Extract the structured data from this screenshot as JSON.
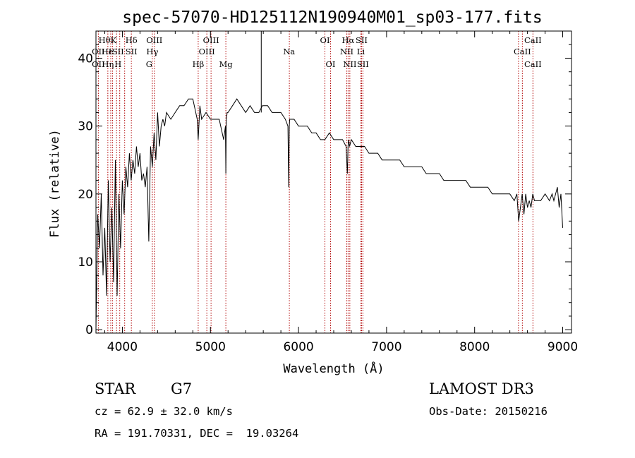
{
  "chart_data": {
    "type": "line",
    "title": "spec-57070-HD125112N190940M01_sp03-177.fits",
    "xlabel": "Wavelength (Å)",
    "ylabel": "Flux (relative)",
    "xlim": [
      3700,
      9100
    ],
    "ylim": [
      -0.5,
      44
    ],
    "x_ticks": [
      4000,
      5000,
      6000,
      7000,
      8000,
      9000
    ],
    "y_ticks": [
      0,
      10,
      20,
      30,
      40
    ],
    "grid": false,
    "series": [
      {
        "x": [
          3700,
          3720,
          3740,
          3760,
          3780,
          3800,
          3820,
          3840,
          3860,
          3880,
          3900,
          3920,
          3940,
          3960,
          3980,
          4000,
          4020,
          4040,
          4060,
          4080,
          4100,
          4120,
          4140,
          4160,
          4180,
          4200,
          4220,
          4240,
          4260,
          4280,
          4300,
          4320,
          4340,
          4360,
          4380,
          4400,
          4420,
          4440,
          4460,
          4480,
          4500,
          4550,
          4600,
          4650,
          4700,
          4750,
          4800,
          4850,
          4861,
          4880,
          4900,
          4950,
          5000,
          5050,
          5100,
          5150,
          5170,
          5175,
          5180,
          5190,
          5200,
          5250,
          5300,
          5350,
          5400,
          5450,
          5500,
          5550,
          5590,
          5600,
          5650,
          5700,
          5750,
          5800,
          5850,
          5880,
          5889,
          5895,
          5900,
          5950,
          6000,
          6050,
          6100,
          6150,
          6200,
          6250,
          6300,
          6350,
          6400,
          6450,
          6500,
          6540,
          6555,
          6563,
          6570,
          6580,
          6600,
          6650,
          6700,
          6750,
          6800,
          6850,
          6900,
          6950,
          7000,
          7050,
          7100,
          7150,
          7200,
          7250,
          7300,
          7350,
          7400,
          7450,
          7500,
          7550,
          7600,
          7650,
          7700,
          7750,
          7800,
          7850,
          7900,
          7950,
          8000,
          8050,
          8100,
          8150,
          8200,
          8250,
          8300,
          8350,
          8400,
          8450,
          8480,
          8500,
          8520,
          8540,
          8560,
          8580,
          8600,
          8620,
          8640,
          8660,
          8680,
          8700,
          8750,
          8800,
          8850,
          8880,
          8900,
          8920,
          8940,
          8960,
          8980,
          9000
        ],
        "y": [
          0,
          17,
          12,
          20,
          8,
          15,
          5,
          22,
          10,
          18,
          7,
          25,
          5,
          20,
          12,
          22,
          17,
          24,
          21,
          26,
          22,
          25,
          23,
          27,
          24,
          26,
          22,
          23,
          21,
          24,
          13,
          27,
          24,
          29,
          25,
          32,
          27,
          30,
          31,
          30,
          32,
          31,
          32,
          33,
          33,
          34,
          34,
          31,
          28,
          33,
          31,
          32,
          31,
          31,
          31,
          28,
          30,
          23,
          31,
          32,
          32,
          33,
          34,
          33,
          32,
          33,
          32,
          32,
          33,
          33,
          33,
          32,
          32,
          32,
          31,
          30,
          21,
          30,
          31,
          31,
          30,
          30,
          30,
          29,
          29,
          28,
          28,
          29,
          28,
          28,
          28,
          27,
          23,
          27,
          28,
          27,
          28,
          27,
          27,
          27,
          26,
          26,
          26,
          25,
          25,
          25,
          25,
          25,
          24,
          24,
          24,
          24,
          24,
          23,
          23,
          23,
          23,
          22,
          22,
          22,
          22,
          22,
          22,
          21,
          21,
          21,
          21,
          21,
          20,
          20,
          20,
          20,
          20,
          19,
          20,
          16,
          18,
          20,
          17,
          20,
          18,
          19,
          18,
          20,
          19,
          19,
          19,
          20,
          19,
          20,
          19,
          20,
          21,
          18,
          20,
          15
        ]
      }
    ],
    "vertical_markers": [
      3727,
      3835,
      3868,
      3889,
      3934,
      3970,
      4026,
      4102,
      4340,
      4363,
      4861,
      4959,
      5007,
      5175,
      5896,
      6300,
      6364,
      6548,
      6563,
      6583,
      6708,
      6716,
      6731,
      8498,
      8542,
      8662
    ],
    "line_labels": [
      {
        "text": "OII",
        "x": 3727,
        "row": 2
      },
      {
        "text": "OII",
        "x": 3727,
        "row": 3
      },
      {
        "text": "Hθ",
        "x": 3797,
        "row": 1
      },
      {
        "text": "He",
        "x": 3830,
        "row": 2
      },
      {
        "text": "Hη",
        "x": 3835,
        "row": 3
      },
      {
        "text": "K",
        "x": 3900,
        "row": 1
      },
      {
        "text": "I",
        "x": 3860,
        "row": 2
      },
      {
        "text": "SII",
        "x": 3950,
        "row": 2
      },
      {
        "text": "H",
        "x": 3950,
        "row": 3
      },
      {
        "text": "Hδ",
        "x": 4102,
        "row": 1
      },
      {
        "text": "SII",
        "x": 4102,
        "row": 2
      },
      {
        "text": "OIII",
        "x": 4363,
        "row": 1
      },
      {
        "text": "Hγ",
        "x": 4340,
        "row": 2
      },
      {
        "text": "G",
        "x": 4304,
        "row": 3
      },
      {
        "text": "Hβ",
        "x": 4861,
        "row": 3
      },
      {
        "text": "OIII",
        "x": 5007,
        "row": 1
      },
      {
        "text": "OIII",
        "x": 4959,
        "row": 2
      },
      {
        "text": "Mg",
        "x": 5175,
        "row": 3
      },
      {
        "text": "Na",
        "x": 5893,
        "row": 2
      },
      {
        "text": "OI",
        "x": 6300,
        "row": 1
      },
      {
        "text": "OI",
        "x": 6364,
        "row": 3
      },
      {
        "text": "Hα",
        "x": 6563,
        "row": 1
      },
      {
        "text": "SII",
        "x": 6716,
        "row": 1
      },
      {
        "text": "NII",
        "x": 6548,
        "row": 2
      },
      {
        "text": "Li",
        "x": 6708,
        "row": 2
      },
      {
        "text": "NII",
        "x": 6583,
        "row": 3
      },
      {
        "text": "SII",
        "x": 6731,
        "row": 3
      },
      {
        "text": "CaII",
        "x": 8662,
        "row": 1
      },
      {
        "text": "CaII",
        "x": 8542,
        "row": 2
      },
      {
        "text": "CaII",
        "x": 8662,
        "row": 3
      }
    ],
    "lower_vertical_line_x": 5577
  },
  "info": {
    "class": "STAR",
    "subclass": "G7",
    "survey": "LAMOST DR3",
    "cz": "cz = 62.9 ± 32.0 km/s",
    "obs_date": "Obs-Date: 20150216",
    "coords": "RA = 191.70331, DEC =  19.03264"
  },
  "colors": {
    "spectrum": "#000000",
    "marker": "#b00000",
    "background": "#ffffff"
  }
}
